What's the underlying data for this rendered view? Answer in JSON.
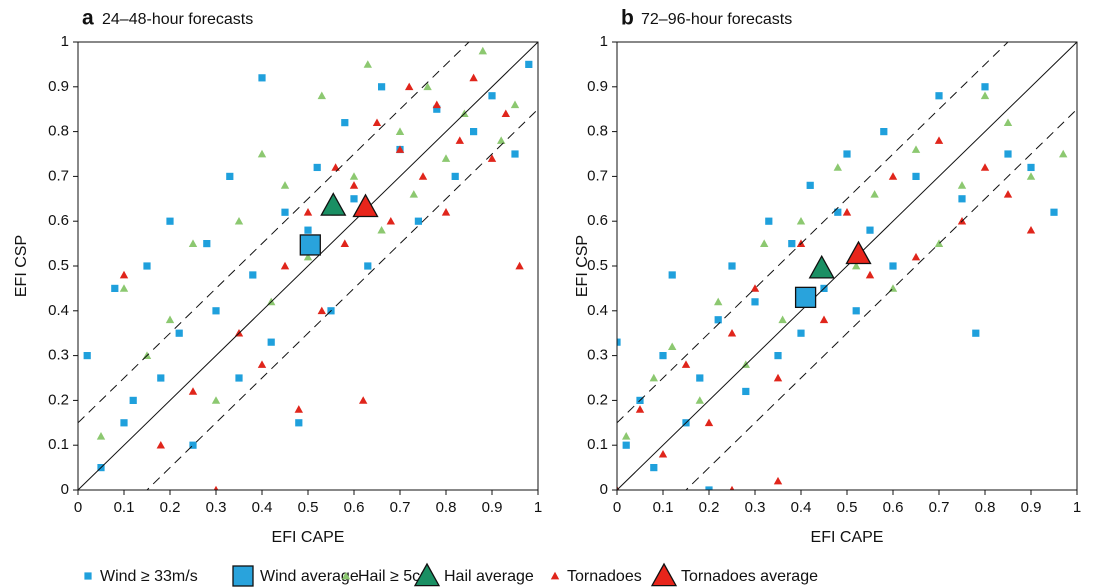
{
  "chart_data": [
    {
      "type": "scatter",
      "panel_label": "a",
      "title": "24–48-hour forecasts",
      "xlabel": "EFI CAPE",
      "ylabel": "EFI CSP",
      "xlim": [
        0,
        1
      ],
      "ylim": [
        0,
        1
      ],
      "xticks": [
        0,
        0.1,
        0.2,
        0.3,
        0.4,
        0.5,
        0.6,
        0.7,
        0.8,
        0.9,
        1
      ],
      "yticks": [
        0,
        0.1,
        0.2,
        0.3,
        0.4,
        0.5,
        0.6,
        0.7,
        0.8,
        0.9,
        1
      ],
      "reference_lines": [
        -0.15,
        0,
        0.15
      ],
      "series": [
        {
          "name": "Wind ≥ 33m/s",
          "color": "#1fa0dc",
          "marker": "square",
          "x": [
            0.02,
            0.05,
            0.08,
            0.1,
            0.12,
            0.15,
            0.18,
            0.2,
            0.22,
            0.25,
            0.28,
            0.3,
            0.33,
            0.35,
            0.38,
            0.4,
            0.42,
            0.45,
            0.48,
            0.5,
            0.52,
            0.55,
            0.58,
            0.6,
            0.63,
            0.66,
            0.7,
            0.74,
            0.78,
            0.82,
            0.86,
            0.9,
            0.95,
            0.98
          ],
          "y": [
            0.3,
            0.05,
            0.45,
            0.15,
            0.2,
            0.5,
            0.25,
            0.6,
            0.35,
            0.1,
            0.55,
            0.4,
            0.7,
            0.25,
            0.48,
            0.92,
            0.33,
            0.62,
            0.15,
            0.58,
            0.72,
            0.4,
            0.82,
            0.65,
            0.5,
            0.9,
            0.76,
            0.6,
            0.85,
            0.7,
            0.8,
            0.88,
            0.75,
            0.95
          ]
        },
        {
          "name": "Wind average",
          "color": "#29a3dc",
          "marker": "square-large",
          "x": [
            0.505
          ],
          "y": [
            0.547
          ]
        },
        {
          "name": "Hail ≥ 5cm",
          "color": "#8cc870",
          "marker": "triangle",
          "x": [
            0.05,
            0.1,
            0.15,
            0.2,
            0.25,
            0.3,
            0.35,
            0.4,
            0.42,
            0.45,
            0.5,
            0.53,
            0.56,
            0.6,
            0.63,
            0.66,
            0.7,
            0.73,
            0.76,
            0.8,
            0.84,
            0.88,
            0.92,
            0.95
          ],
          "y": [
            0.12,
            0.45,
            0.3,
            0.38,
            0.55,
            0.2,
            0.6,
            0.75,
            0.42,
            0.68,
            0.52,
            0.88,
            0.62,
            0.7,
            0.95,
            0.58,
            0.8,
            0.66,
            0.9,
            0.74,
            0.84,
            0.98,
            0.78,
            0.86
          ]
        },
        {
          "name": "Hail average",
          "color": "#1a8f63",
          "marker": "triangle-large",
          "x": [
            0.555
          ],
          "y": [
            0.635
          ]
        },
        {
          "name": "Tornadoes",
          "color": "#e0251b",
          "marker": "triangle",
          "x": [
            0.1,
            0.18,
            0.25,
            0.3,
            0.35,
            0.4,
            0.45,
            0.48,
            0.5,
            0.53,
            0.56,
            0.58,
            0.6,
            0.62,
            0.65,
            0.68,
            0.7,
            0.72,
            0.75,
            0.78,
            0.8,
            0.83,
            0.86,
            0.9,
            0.93,
            0.96
          ],
          "y": [
            0.48,
            0.1,
            0.22,
            0,
            0.35,
            0.28,
            0.5,
            0.18,
            0.62,
            0.4,
            0.72,
            0.55,
            0.68,
            0.2,
            0.82,
            0.6,
            0.76,
            0.9,
            0.7,
            0.86,
            0.62,
            0.78,
            0.92,
            0.74,
            0.84,
            0.5
          ]
        },
        {
          "name": "Tornadoes average",
          "color": "#e8251b",
          "marker": "triangle-large",
          "x": [
            0.625
          ],
          "y": [
            0.632
          ]
        }
      ]
    },
    {
      "type": "scatter",
      "panel_label": "b",
      "title": "72–96-hour forecasts",
      "xlabel": "EFI CAPE",
      "ylabel": "EFI CSP",
      "xlim": [
        0,
        1
      ],
      "ylim": [
        0,
        1
      ],
      "xticks": [
        0,
        0.1,
        0.2,
        0.3,
        0.4,
        0.5,
        0.6,
        0.7,
        0.8,
        0.9,
        1
      ],
      "yticks": [
        0,
        0.1,
        0.2,
        0.3,
        0.4,
        0.5,
        0.6,
        0.7,
        0.8,
        0.9,
        1
      ],
      "reference_lines": [
        -0.15,
        0,
        0.15
      ],
      "series": [
        {
          "color": "#1fa0dc",
          "marker": "square",
          "x": [
            0,
            0.02,
            0.05,
            0.08,
            0.1,
            0.12,
            0.15,
            0.18,
            0.2,
            0.22,
            0.25,
            0.28,
            0.3,
            0.33,
            0.35,
            0.38,
            0.4,
            0.42,
            0.45,
            0.48,
            0.5,
            0.52,
            0.55,
            0.58,
            0.6,
            0.65,
            0.7,
            0.75,
            0.8,
            0.85,
            0.9,
            0.95,
            0.78
          ],
          "y": [
            0.33,
            0.1,
            0.2,
            0.05,
            0.3,
            0.48,
            0.15,
            0.25,
            0,
            0.38,
            0.5,
            0.22,
            0.42,
            0.6,
            0.3,
            0.55,
            0.35,
            0.68,
            0.45,
            0.62,
            0.75,
            0.4,
            0.58,
            0.8,
            0.5,
            0.7,
            0.88,
            0.65,
            0.9,
            0.75,
            0.72,
            0.62,
            0.35
          ]
        },
        {
          "color": "#29a3dc",
          "marker": "square-large",
          "x": [
            0.41
          ],
          "y": [
            0.43
          ]
        },
        {
          "color": "#8cc870",
          "marker": "triangle",
          "x": [
            0.02,
            0.08,
            0.12,
            0.18,
            0.22,
            0.28,
            0.32,
            0.36,
            0.4,
            0.44,
            0.48,
            0.52,
            0.56,
            0.6,
            0.65,
            0.7,
            0.75,
            0.8,
            0.85,
            0.9,
            0.97
          ],
          "y": [
            0.12,
            0.25,
            0.32,
            0.2,
            0.42,
            0.28,
            0.55,
            0.38,
            0.6,
            0.48,
            0.72,
            0.5,
            0.66,
            0.45,
            0.76,
            0.55,
            0.68,
            0.88,
            0.82,
            0.7,
            0.75
          ]
        },
        {
          "color": "#1a8f63",
          "marker": "triangle-large",
          "x": [
            0.445
          ],
          "y": [
            0.495
          ]
        },
        {
          "color": "#e0251b",
          "marker": "triangle",
          "x": [
            0,
            0.05,
            0.1,
            0.15,
            0.2,
            0.25,
            0.3,
            0.35,
            0.4,
            0.45,
            0.5,
            0.55,
            0.6,
            0.65,
            0.7,
            0.75,
            0.8,
            0.85,
            0.9,
            0.25,
            0.35
          ],
          "y": [
            0,
            0.18,
            0.08,
            0.28,
            0.15,
            0.35,
            0.45,
            0.25,
            0.55,
            0.38,
            0.62,
            0.48,
            0.7,
            0.52,
            0.78,
            0.6,
            0.72,
            0.66,
            0.58,
            0,
            0.02
          ]
        },
        {
          "color": "#e8251b",
          "marker": "triangle-large",
          "x": [
            0.525
          ],
          "y": [
            0.527
          ]
        }
      ]
    }
  ]
}
